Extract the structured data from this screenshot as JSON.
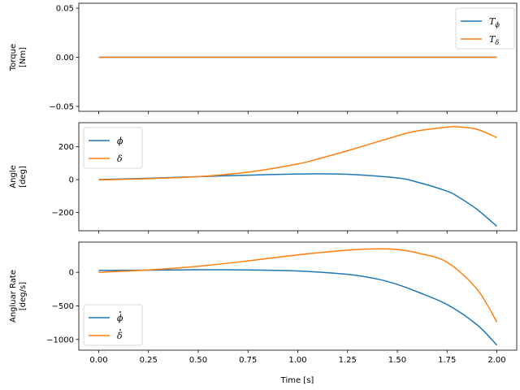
{
  "colors": {
    "series1": "#1f77b4",
    "series2": "#ff7f0e"
  },
  "xlabel": "Time [s]",
  "x_ticks": [
    0.0,
    0.25,
    0.5,
    0.75,
    1.0,
    1.25,
    1.5,
    1.75,
    2.0
  ],
  "x_tick_labels": [
    "0.00",
    "0.25",
    "0.50",
    "0.75",
    "1.00",
    "1.25",
    "1.50",
    "1.75",
    "2.00"
  ],
  "xlim": [
    -0.1,
    2.1
  ],
  "chart_data": [
    {
      "type": "line",
      "ylabel": [
        "Torque",
        "[Nm]"
      ],
      "ylim": [
        -0.055,
        0.055
      ],
      "y_ticks": [
        -0.05,
        0.0,
        0.05
      ],
      "y_tick_labels": [
        "−0.05",
        "0.00",
        "0.05"
      ],
      "legend_position": "upper right",
      "x": [
        0.0,
        0.25,
        0.5,
        0.75,
        1.0,
        1.25,
        1.5,
        1.75,
        2.0
      ],
      "series": [
        {
          "name": "T",
          "sub": "ϕ",
          "dot": false,
          "values": [
            0,
            0,
            0,
            0,
            0,
            0,
            0,
            0,
            0
          ]
        },
        {
          "name": "T",
          "sub": "δ",
          "dot": false,
          "values": [
            0,
            0,
            0,
            0,
            0,
            0,
            0,
            0,
            0
          ]
        }
      ]
    },
    {
      "type": "line",
      "ylabel": [
        "Angle",
        "[deg]"
      ],
      "ylim": [
        -310,
        345
      ],
      "y_ticks": [
        -200,
        0,
        200
      ],
      "y_tick_labels": [
        "−200",
        "0",
        "200"
      ],
      "legend_position": "upper left",
      "x": [
        0.0,
        0.25,
        0.5,
        0.75,
        1.0,
        1.1,
        1.25,
        1.5,
        1.6,
        1.75,
        1.8,
        1.9,
        2.0
      ],
      "series": [
        {
          "name": "ϕ",
          "sub": "",
          "dot": false,
          "values": [
            0,
            8,
            18,
            27,
            34,
            35,
            32,
            10,
            -15,
            -70,
            -100,
            -180,
            -283
          ]
        },
        {
          "name": "δ",
          "sub": "",
          "dot": false,
          "values": [
            -2,
            6,
            18,
            45,
            95,
            125,
            175,
            265,
            295,
            318,
            320,
            305,
            255
          ]
        }
      ]
    },
    {
      "type": "line",
      "ylabel": [
        "Angluar Rate",
        "[deg/s]"
      ],
      "ylim": [
        -1160,
        450
      ],
      "y_ticks": [
        -1000,
        -500,
        0
      ],
      "y_tick_labels": [
        "−1000",
        "−500",
        "0"
      ],
      "legend_position": "lower left",
      "x": [
        0.0,
        0.25,
        0.5,
        0.75,
        1.0,
        1.25,
        1.4,
        1.5,
        1.6,
        1.75,
        1.9,
        2.0
      ],
      "series": [
        {
          "name": "ϕ",
          "sub": "",
          "dot": true,
          "values": [
            30,
            32,
            38,
            35,
            20,
            -30,
            -100,
            -180,
            -290,
            -480,
            -780,
            -1085
          ]
        },
        {
          "name": "δ",
          "sub": "",
          "dot": true,
          "values": [
            0,
            35,
            90,
            170,
            260,
            330,
            350,
            340,
            290,
            150,
            -250,
            -740
          ]
        }
      ]
    }
  ]
}
